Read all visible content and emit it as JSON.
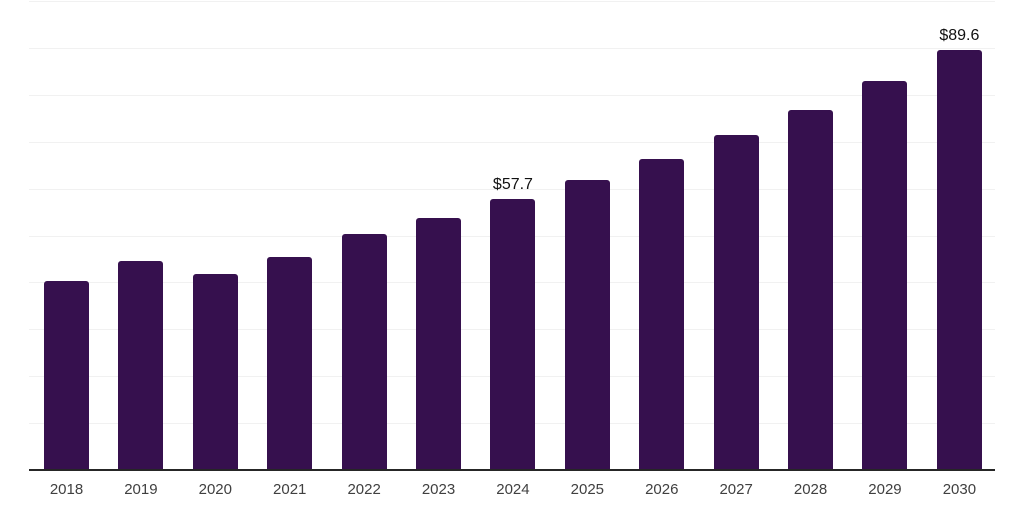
{
  "chart_data": {
    "type": "bar",
    "title": "",
    "xlabel": "",
    "ylabel": "",
    "categories": [
      "2018",
      "2019",
      "2020",
      "2021",
      "2022",
      "2023",
      "2024",
      "2025",
      "2026",
      "2027",
      "2028",
      "2029",
      "2030"
    ],
    "values": [
      40.4,
      44.6,
      41.7,
      45.5,
      50.3,
      53.8,
      57.7,
      61.8,
      66.3,
      71.4,
      76.8,
      82.9,
      89.6
    ],
    "value_labels": {
      "2024": "$57.7",
      "2030": "$89.6"
    },
    "ylim": [
      0,
      100
    ],
    "gridlines": {
      "start": 10,
      "end": 100,
      "interval": 10
    },
    "grid": "horizontal",
    "legend": "none",
    "y_axis_tick_labels": [],
    "bar_color": "#36104E",
    "gridline_color": "#f1f1f1",
    "axis_line_color": "#262626",
    "tick_label_color": "#404040",
    "value_label_color": "#111111"
  }
}
